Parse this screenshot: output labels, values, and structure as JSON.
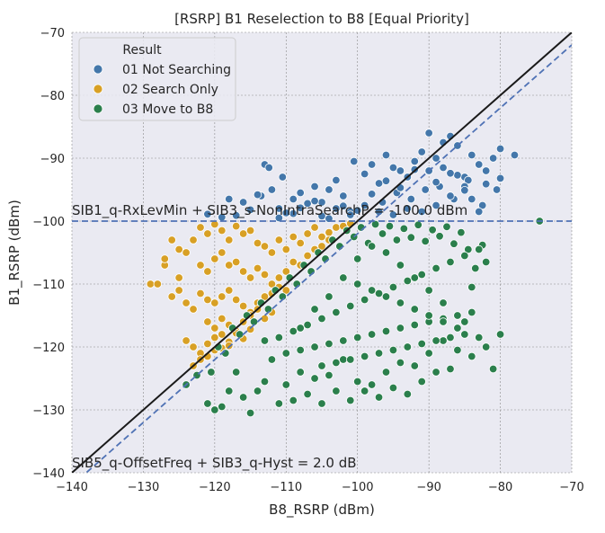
{
  "chart_data": {
    "type": "scatter",
    "title": "[RSRP] B1 Reselection to B8 [Equal Priority]",
    "xlabel": "B8_RSRP (dBm)",
    "ylabel": "B1_RSRP (dBm)",
    "xlim": [
      -140,
      -70
    ],
    "ylim": [
      -140,
      -70
    ],
    "xticks": [
      -140,
      -130,
      -120,
      -110,
      -100,
      -90,
      -80,
      -70
    ],
    "yticks": [
      -140,
      -130,
      -120,
      -110,
      -100,
      -90,
      -80,
      -70
    ],
    "x_tick_labels": [
      "−140",
      "−130",
      "−120",
      "−110",
      "−100",
      "−90",
      "−80",
      "−70"
    ],
    "y_tick_labels": [
      "−140",
      "−130",
      "−120",
      "−110",
      "−100",
      "−90",
      "−80",
      "−70"
    ],
    "grid": true,
    "legend": {
      "title": "Result",
      "placement": "top-left",
      "entries": [
        {
          "label": "01 Not Searching",
          "color": "#4477aa"
        },
        {
          "label": "02 Search Only",
          "color": "#d8a025"
        },
        {
          "label": "03 Move to B8",
          "color": "#2b7f4c"
        }
      ]
    },
    "reference_lines": {
      "identity": {
        "slope": 1,
        "intercept": 0,
        "color": "#1a1a1a",
        "style": "solid"
      },
      "offset": {
        "slope": 1,
        "intercept": -2,
        "color": "#4f72b5",
        "style": "dashed"
      },
      "threshold": {
        "y": -100,
        "color": "#4f72b5",
        "style": "dashed"
      }
    },
    "annotations": [
      {
        "text": "SIB1_q-RxLevMin + SIB3_s-NonIntraSearchP = -100.0 dBm",
        "x": -140,
        "y": -98.5
      },
      {
        "text": "SIB5_q-OffsetFreq + SIB3_q-Hyst = 2.0 dB",
        "x": -140,
        "y": -139
      }
    ],
    "series": [
      {
        "name": "01 Not Searching",
        "color": "#4477aa",
        "x": [
          -113,
          -112.4,
          -110.5,
          -112,
          -113.5,
          -111,
          -109,
          -108,
          -106,
          -105,
          -104,
          -103,
          -102,
          -101,
          -100.5,
          -99,
          -98,
          -97,
          -96,
          -95,
          -94,
          -93,
          -92,
          -91,
          -90,
          -89,
          -88,
          -87,
          -86,
          -85,
          -84,
          -83,
          -82,
          -81,
          -80,
          -78,
          -96.5,
          -94.5,
          -92.5,
          -90.5,
          -88.5,
          -86.5,
          -84.5,
          -82.5,
          -80.5,
          -91,
          -89,
          -87,
          -85,
          -83,
          -93,
          -95,
          -97,
          -99,
          -101,
          -103,
          -105,
          -107,
          -109,
          -111,
          -115,
          -117,
          -119,
          -121,
          -118,
          -116,
          -114,
          -90,
          -88,
          -86,
          -84,
          -92,
          -94,
          -96,
          -98,
          -100,
          -102,
          -104,
          -106,
          -108,
          -110,
          -82,
          -80,
          -85,
          -87,
          -89
        ],
        "y": [
          -91,
          -91.5,
          -93,
          -95,
          -96,
          -98,
          -96.5,
          -95.5,
          -94.5,
          -97,
          -95,
          -93.5,
          -96,
          -98.5,
          -90.5,
          -92.5,
          -91,
          -94,
          -89.5,
          -91.5,
          -92,
          -93,
          -90.5,
          -89,
          -92,
          -90,
          -91.5,
          -86.5,
          -88,
          -93,
          -89.5,
          -91,
          -92,
          -90,
          -88.5,
          -89.5,
          -97,
          -95.5,
          -96.5,
          -95,
          -94.5,
          -96.5,
          -93.5,
          -97.5,
          -95,
          -98.5,
          -97.5,
          -96,
          -94.5,
          -98.5,
          -98,
          -99,
          -98.5,
          -97.5,
          -99,
          -98,
          -99.2,
          -97.2,
          -98.8,
          -99.5,
          -98.2,
          -99.1,
          -99.4,
          -98.9,
          -96.5,
          -97,
          -95.8,
          -86,
          -87.5,
          -92.7,
          -96.5,
          -91.8,
          -94.7,
          -93.6,
          -95.7,
          -98.3,
          -97.6,
          -99.6,
          -96.8,
          -97.9,
          -98.7,
          -94.1,
          -93.2,
          -95.1,
          -92.4,
          -93.8
        ]
      },
      {
        "name": "02 Search Only",
        "color": "#d8a025",
        "x": [
          -129,
          -128,
          -127,
          -126,
          -125,
          -124,
          -123,
          -122,
          -121,
          -120,
          -119,
          -118,
          -117,
          -116,
          -115,
          -114,
          -113,
          -112,
          -111,
          -110,
          -109,
          -108,
          -107,
          -106,
          -105,
          -104,
          -103,
          -102,
          -101,
          -122,
          -121,
          -120,
          -119,
          -118,
          -117,
          -116,
          -115,
          -114,
          -113,
          -112,
          -111,
          -110,
          -109,
          -108,
          -107,
          -106,
          -105,
          -104,
          -126,
          -125,
          -124,
          -123,
          -122,
          -121,
          -120,
          -119,
          -118,
          -117,
          -116,
          -115,
          -114,
          -113,
          -112,
          -111,
          -110,
          -121,
          -120,
          -119,
          -118,
          -117,
          -116,
          -115,
          -114,
          -113,
          -112,
          -124,
          -123,
          -122,
          -121,
          -120,
          -119,
          -118,
          -117,
          -116,
          -115,
          -123,
          -122,
          -121,
          -120,
          -119,
          -118,
          -125,
          -127
        ],
        "y": [
          -110,
          -110,
          -107,
          -103,
          -109,
          -105,
          -103,
          -101,
          -102,
          -100.5,
          -101.5,
          -103,
          -100.8,
          -102,
          -101.5,
          -103.5,
          -104,
          -105,
          -103,
          -104.5,
          -102.5,
          -103.5,
          -102,
          -101,
          -102.5,
          -101.8,
          -101,
          -100.8,
          -100.4,
          -107,
          -108,
          -106,
          -105,
          -107,
          -106.5,
          -108,
          -109,
          -107.5,
          -108.5,
          -110,
          -109,
          -108,
          -106.5,
          -107,
          -105.5,
          -104.5,
          -104,
          -103,
          -112,
          -111,
          -113,
          -114,
          -111.5,
          -112.5,
          -113,
          -112,
          -111,
          -112.5,
          -113.5,
          -114.5,
          -113,
          -112,
          -111.5,
          -110.5,
          -111,
          -116,
          -117,
          -115.5,
          -116.5,
          -117.5,
          -116,
          -115,
          -114,
          -115.5,
          -114.5,
          -119,
          -120,
          -121,
          -119.5,
          -118.5,
          -118,
          -119.2,
          -117.8,
          -118.7,
          -117.2,
          -123,
          -122,
          -121.5,
          -120.5,
          -120.2,
          -119.8,
          -104.5,
          -106
        ]
      },
      {
        "name": "03 Move to B8",
        "color": "#2b7f4c",
        "x": [
          -124,
          -122.5,
          -121,
          -120,
          -119,
          -118,
          -117,
          -116,
          -115,
          -114,
          -113,
          -112,
          -111,
          -110,
          -109,
          -108,
          -107,
          -106,
          -105,
          -104,
          -103,
          -102,
          -101,
          -100,
          -99,
          -98,
          -97,
          -96,
          -95,
          -94,
          -93,
          -92,
          -91,
          -90,
          -89,
          -88,
          -87,
          -86,
          -85,
          -84,
          -83,
          -82,
          -81,
          -74.5,
          -120.5,
          -119.5,
          -118.5,
          -117.5,
          -116.5,
          -115.5,
          -114.5,
          -113.5,
          -112.5,
          -111.5,
          -110.5,
          -109.5,
          -108.5,
          -107.5,
          -106.5,
          -105.5,
          -104.5,
          -103.5,
          -102.5,
          -101.5,
          -100.5,
          -99.5,
          -98.5,
          -97.5,
          -96.5,
          -95.5,
          -94.5,
          -93.5,
          -92.5,
          -91.5,
          -90.5,
          -89.5,
          -88.5,
          -87.5,
          -86.5,
          -85.5,
          -84.5,
          -83.5,
          -82.5,
          -80,
          -108,
          -106,
          -104,
          -102,
          -100,
          -98,
          -96,
          -94,
          -92,
          -90,
          -88,
          -86,
          -84,
          -82,
          -113,
          -111,
          -109,
          -107,
          -105,
          -103,
          -101,
          -99,
          -97,
          -95,
          -93,
          -91,
          -89,
          -87,
          -85,
          -83,
          -110,
          -108,
          -106,
          -104,
          -102,
          -100,
          -98,
          -96,
          -94,
          -92,
          -90,
          -88,
          -86,
          -84,
          -105,
          -103,
          -101,
          -99,
          -97,
          -95,
          -93,
          -91,
          -89,
          -87,
          -85,
          -100,
          -98,
          -96,
          -94,
          -92,
          -90,
          -88,
          -86
        ],
        "y": [
          -126,
          -124.5,
          -129,
          -130,
          -129.5,
          -127,
          -124,
          -128,
          -130.5,
          -127,
          -125.5,
          -122,
          -129,
          -126,
          -128.5,
          -124,
          -127.5,
          -125,
          -129,
          -124.5,
          -127,
          -122,
          -128.5,
          -125.5,
          -127,
          -126,
          -128,
          -124,
          -126.5,
          -122.5,
          -127.5,
          -123,
          -125.5,
          -121,
          -124,
          -119,
          -123.5,
          -120.5,
          -116,
          -121.5,
          -118.5,
          -120,
          -123.5,
          -100,
          -124,
          -120,
          -121,
          -117,
          -118,
          -115,
          -116,
          -113,
          -114,
          -111,
          -112,
          -109,
          -110,
          -107,
          -108,
          -105,
          -106,
          -103,
          -104,
          -101.5,
          -102.5,
          -101,
          -103.5,
          -100.5,
          -102,
          -100.8,
          -103,
          -101.2,
          -102.6,
          -100.6,
          -103.2,
          -101.4,
          -102.4,
          -100.9,
          -103.6,
          -101.8,
          -104.5,
          -107.5,
          -103.8,
          -118,
          -117,
          -114,
          -112,
          -109,
          -106,
          -104,
          -105,
          -107,
          -109,
          -111,
          -113,
          -115,
          -110.5,
          -106.5,
          -119,
          -118.5,
          -117.5,
          -116.5,
          -115.5,
          -114.5,
          -113.5,
          -112.5,
          -111.5,
          -110.5,
          -109.5,
          -108.5,
          -107.5,
          -106.5,
          -105.5,
          -104.5,
          -121,
          -120.5,
          -120,
          -119.5,
          -119,
          -118.5,
          -118,
          -117.5,
          -117,
          -116.5,
          -116,
          -115.5,
          -115,
          -114.5,
          -123,
          -122.5,
          -122,
          -121.5,
          -121,
          -120.5,
          -120,
          -119.5,
          -119,
          -118.5,
          -118,
          -110,
          -111,
          -112,
          -113,
          -114,
          -115,
          -116,
          -117
        ]
      }
    ]
  }
}
